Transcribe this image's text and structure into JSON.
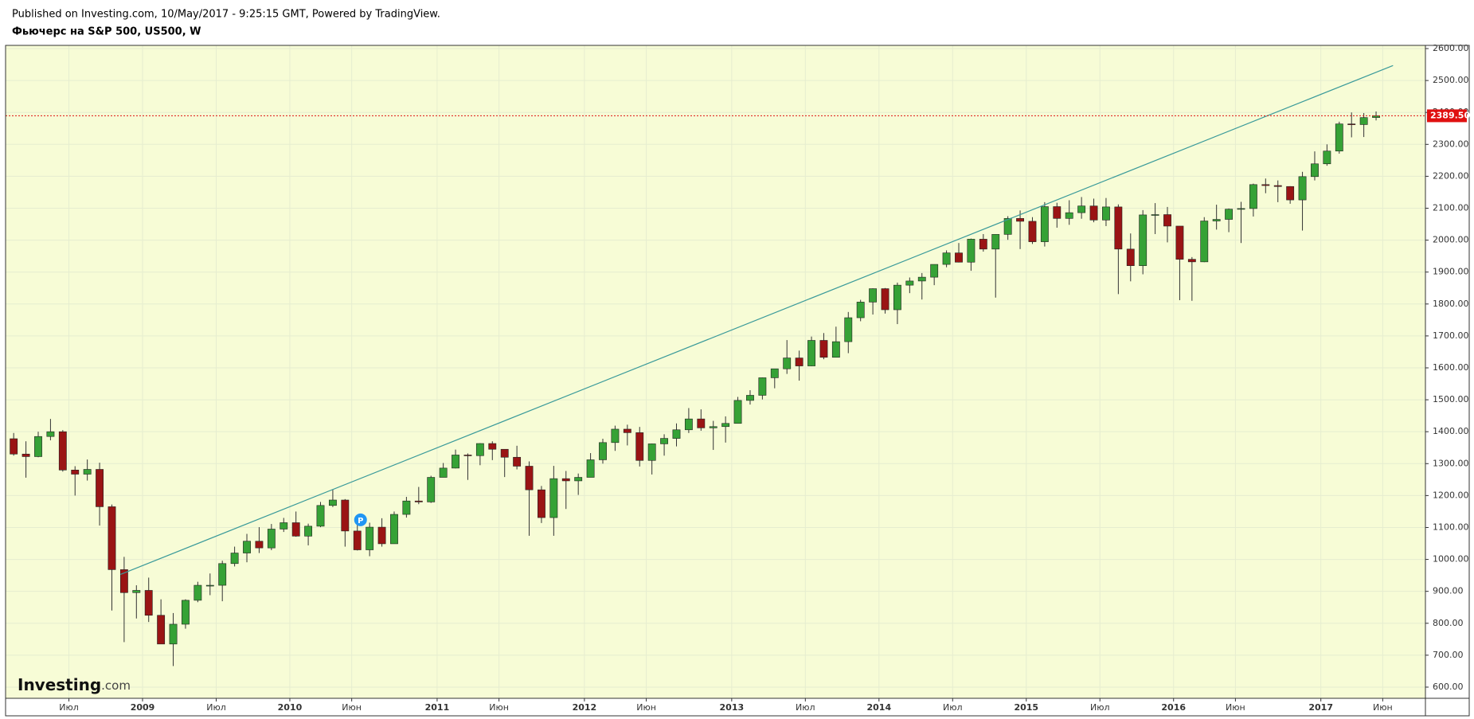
{
  "header": {
    "published": "Published on Investing.com, 10/May/2017 - 9:25:15 GMT, Powered by TradingView.",
    "title": "Фьючерс на S&P 500, US500, W"
  },
  "chart_data": {
    "type": "candlestick",
    "background": "#f7fcd6",
    "up_color": "#36a236",
    "down_color": "#9a1414",
    "wick_color": "#333333",
    "grid": true,
    "xlim": [
      2008.07,
      2017.71
    ],
    "ylim": [
      565,
      2610
    ],
    "xticks": [
      {
        "value": 2008.5,
        "label": "Июл"
      },
      2009,
      {
        "value": 2009.5,
        "label": "Июл"
      },
      2010,
      {
        "value": 2010.42,
        "label": "Июн"
      },
      2011,
      {
        "value": 2011.42,
        "label": "Июн"
      },
      2012,
      {
        "value": 2012.42,
        "label": "Июн"
      },
      2013,
      {
        "value": 2013.5,
        "label": "Июл"
      },
      2014,
      {
        "value": 2014.5,
        "label": "Июл"
      },
      2015,
      {
        "value": 2015.5,
        "label": "Июл"
      },
      2016,
      {
        "value": 2016.42,
        "label": "Июн"
      },
      2017,
      {
        "value": 2017.42,
        "label": "Июн"
      }
    ],
    "yticks": [
      {
        "value": 600,
        "label": "600.00"
      },
      {
        "value": 700,
        "label": "700.00"
      },
      {
        "value": 800,
        "label": "800.00"
      },
      {
        "value": 900,
        "label": "900.00"
      },
      {
        "value": 1000,
        "label": "1000.00"
      },
      {
        "value": 1100,
        "label": "1100.00"
      },
      {
        "value": 1200,
        "label": "1200.00"
      },
      {
        "value": 1300,
        "label": "1300.00"
      },
      {
        "value": 1400,
        "label": "1400.00"
      },
      {
        "value": 1500,
        "label": "1500.00"
      },
      {
        "value": 1600,
        "label": "1600.00"
      },
      {
        "value": 1700,
        "label": "1700.00"
      },
      {
        "value": 1800,
        "label": "1800.00"
      },
      {
        "value": 1900,
        "label": "1900.00"
      },
      {
        "value": 2000,
        "label": "2000.00"
      },
      {
        "value": 2100,
        "label": "2100.00"
      },
      {
        "value": 2200,
        "label": "2200.00"
      },
      {
        "value": 2300,
        "label": "2300.00"
      },
      {
        "value": 2400,
        "label": "2400.00"
      },
      {
        "value": 2500,
        "label": "2500.00"
      },
      {
        "value": 2600,
        "label": "2600.00"
      }
    ],
    "x": [
      "2008-02",
      "2008-03",
      "2008-04",
      "2008-05",
      "2008-06",
      "2008-07",
      "2008-08",
      "2008-09",
      "2008-10",
      "2008-11",
      "2008-12",
      "2009-01",
      "2009-02",
      "2009-03",
      "2009-04",
      "2009-05",
      "2009-06",
      "2009-07",
      "2009-08",
      "2009-09",
      "2009-10",
      "2009-11",
      "2009-12",
      "2010-01",
      "2010-02",
      "2010-03",
      "2010-04",
      "2010-05",
      "2010-06",
      "2010-07",
      "2010-08",
      "2010-09",
      "2010-10",
      "2010-11",
      "2010-12",
      "2011-01",
      "2011-02",
      "2011-03",
      "2011-04",
      "2011-05",
      "2011-06",
      "2011-07",
      "2011-08",
      "2011-09",
      "2011-10",
      "2011-11",
      "2011-12",
      "2012-01",
      "2012-02",
      "2012-03",
      "2012-04",
      "2012-05",
      "2012-06",
      "2012-07",
      "2012-08",
      "2012-09",
      "2012-10",
      "2012-11",
      "2012-12",
      "2013-01",
      "2013-02",
      "2013-03",
      "2013-04",
      "2013-05",
      "2013-06",
      "2013-07",
      "2013-08",
      "2013-09",
      "2013-10",
      "2013-11",
      "2013-12",
      "2014-01",
      "2014-02",
      "2014-03",
      "2014-04",
      "2014-05",
      "2014-06",
      "2014-07",
      "2014-08",
      "2014-09",
      "2014-10",
      "2014-11",
      "2014-12",
      "2015-01",
      "2015-02",
      "2015-03",
      "2015-04",
      "2015-05",
      "2015-06",
      "2015-07",
      "2015-08",
      "2015-09",
      "2015-10",
      "2015-11",
      "2015-12",
      "2016-01",
      "2016-02",
      "2016-03",
      "2016-04",
      "2016-05",
      "2016-06",
      "2016-07",
      "2016-08",
      "2016-09",
      "2016-10",
      "2016-11",
      "2016-12",
      "2017-01",
      "2017-02",
      "2017-03",
      "2017-04",
      "2017-05"
    ],
    "open": [
      1378,
      1330,
      1322,
      1385,
      1400,
      1280,
      1267,
      1282,
      1165,
      968,
      896,
      903,
      825,
      735,
      797,
      872,
      919,
      919,
      987,
      1020,
      1057,
      1036,
      1095,
      1115,
      1073,
      1104,
      1169,
      1186,
      1089,
      1030,
      1101,
      1049,
      1141,
      1183,
      1180,
      1257,
      1286,
      1327,
      1325,
      1363,
      1345,
      1320,
      1292,
      1218,
      1131,
      1253,
      1246,
      1257,
      1312,
      1366,
      1408,
      1397,
      1310,
      1362,
      1379,
      1406,
      1440,
      1412,
      1416,
      1426,
      1498,
      1514,
      1569,
      1597,
      1631,
      1606,
      1686,
      1633,
      1682,
      1757,
      1806,
      1848,
      1782,
      1859,
      1872,
      1884,
      1924,
      1960,
      1931,
      2003,
      1972,
      2018,
      2068,
      2059,
      1995,
      2105,
      2068,
      2086,
      2107,
      2063,
      2104,
      1972,
      1920,
      2079,
      2080,
      2044,
      1940,
      1932,
      2060,
      2065,
      2097,
      2099,
      2174,
      2171,
      2168,
      2126,
      2199,
      2239,
      2279,
      2364,
      2362,
      2384
    ],
    "high": [
      1396,
      1370,
      1400,
      1440,
      1405,
      1292,
      1313,
      1303,
      1172,
      1008,
      919,
      943,
      875,
      832,
      875,
      930,
      956,
      996,
      1040,
      1080,
      1101,
      1111,
      1130,
      1150,
      1112,
      1180,
      1219,
      1189,
      1131,
      1115,
      1129,
      1150,
      1196,
      1227,
      1262,
      1302,
      1344,
      1332,
      1364,
      1370,
      1345,
      1356,
      1307,
      1230,
      1293,
      1277,
      1269,
      1333,
      1378,
      1419,
      1422,
      1415,
      1363,
      1392,
      1426,
      1474,
      1470,
      1434,
      1448,
      1509,
      1530,
      1570,
      1597,
      1687,
      1654,
      1698,
      1709,
      1729,
      1775,
      1813,
      1849,
      1850,
      1867,
      1883,
      1897,
      1924,
      1968,
      1991,
      2005,
      2019,
      2018,
      2075,
      2093,
      2072,
      2119,
      2117,
      2125,
      2135,
      2130,
      2132,
      2112,
      2021,
      2094,
      2116,
      2104,
      2044,
      1947,
      2072,
      2111,
      2099,
      2120,
      2177,
      2193,
      2187,
      2169,
      2214,
      2278,
      2300,
      2371,
      2400,
      2398,
      2403
    ],
    "low": [
      1325,
      1256,
      1320,
      1373,
      1275,
      1200,
      1247,
      1106,
      840,
      741,
      815,
      804,
      735,
      666,
      783,
      866,
      888,
      869,
      978,
      991,
      1020,
      1029,
      1086,
      1071,
      1044,
      1101,
      1164,
      1040,
      1028,
      1010,
      1040,
      1049,
      1131,
      1173,
      1177,
      1257,
      1285,
      1249,
      1295,
      1311,
      1258,
      1282,
      1074,
      1114,
      1074,
      1158,
      1202,
      1257,
      1300,
      1340,
      1357,
      1291,
      1266,
      1325,
      1354,
      1396,
      1403,
      1343,
      1366,
      1426,
      1485,
      1501,
      1536,
      1581,
      1560,
      1605,
      1627,
      1633,
      1646,
      1746,
      1767,
      1770,
      1737,
      1834,
      1814,
      1859,
      1915,
      1930,
      1904,
      1964,
      1820,
      2001,
      1972,
      1988,
      1980,
      2039,
      2048,
      2067,
      2056,
      2044,
      1831,
      1871,
      1893,
      2019,
      1993,
      1812,
      1810,
      1931,
      2033,
      2025,
      1991,
      2074,
      2147,
      2119,
      2114,
      2030,
      2187,
      2233,
      2271,
      2322,
      2323,
      2375
    ],
    "close": [
      1330,
      1322,
      1385,
      1400,
      1280,
      1267,
      1282,
      1165,
      968,
      896,
      903,
      825,
      735,
      797,
      872,
      919,
      919,
      987,
      1020,
      1057,
      1036,
      1095,
      1115,
      1073,
      1104,
      1169,
      1186,
      1089,
      1030,
      1101,
      1049,
      1141,
      1183,
      1180,
      1257,
      1286,
      1327,
      1325,
      1363,
      1345,
      1320,
      1292,
      1218,
      1131,
      1253,
      1246,
      1257,
      1312,
      1366,
      1408,
      1397,
      1310,
      1362,
      1379,
      1406,
      1440,
      1412,
      1416,
      1426,
      1498,
      1514,
      1569,
      1597,
      1631,
      1606,
      1686,
      1633,
      1682,
      1757,
      1806,
      1848,
      1782,
      1859,
      1872,
      1884,
      1924,
      1960,
      1931,
      2003,
      1972,
      2018,
      2068,
      2059,
      1995,
      2105,
      2068,
      2086,
      2107,
      2063,
      2104,
      1972,
      1920,
      2079,
      2080,
      2044,
      1940,
      1932,
      2060,
      2065,
      2097,
      2099,
      2174,
      2171,
      2168,
      2126,
      2199,
      2239,
      2279,
      2364,
      2362,
      2384,
      2389.5
    ],
    "trendline": {
      "x": [
        2008.85,
        2017.49
      ],
      "y": [
        953,
        2547
      ],
      "color": "#3a9a9a"
    },
    "price_line": {
      "value": 2389.5,
      "label": "2389.50",
      "color": "#e01010"
    },
    "marker": {
      "label": "P",
      "x": 2010.48,
      "y": 1124,
      "color": "#2196f3"
    },
    "logo": {
      "main": "Investing",
      "suffix": ".com"
    }
  }
}
